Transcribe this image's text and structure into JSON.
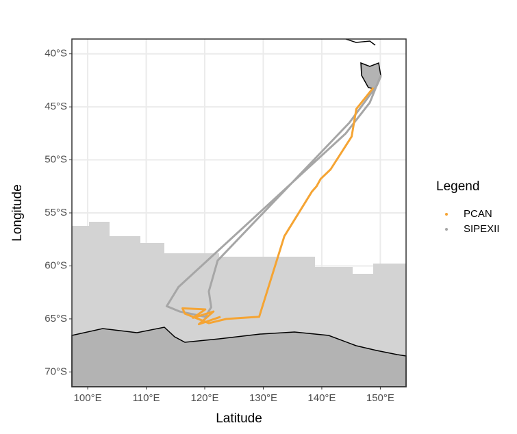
{
  "chart_data": {
    "type": "line",
    "x_label": "Latitude",
    "y_label": "Longitude",
    "xlim": [
      97.3,
      154.4
    ],
    "ylim": [
      -71.4,
      -38.6
    ],
    "xticks": [
      {
        "value": 100,
        "label": "100°E"
      },
      {
        "value": 110,
        "label": "110°E"
      },
      {
        "value": 120,
        "label": "120°E"
      },
      {
        "value": 130,
        "label": "130°E"
      },
      {
        "value": 140,
        "label": "140°E"
      },
      {
        "value": 150,
        "label": "150°E"
      }
    ],
    "yticks": [
      {
        "value": -40,
        "label": "40°S"
      },
      {
        "value": -45,
        "label": "45°S"
      },
      {
        "value": -50,
        "label": "50°S"
      },
      {
        "value": -55,
        "label": "55°S"
      },
      {
        "value": -60,
        "label": "60°S"
      },
      {
        "value": -65,
        "label": "65°S"
      },
      {
        "value": -70,
        "label": "70°S"
      }
    ],
    "grid": true,
    "legend_title": "Legend",
    "series": [
      {
        "name": "PCAN",
        "color": "#f5a433",
        "x": [
          148.8,
          145.9,
          145.1,
          141.5,
          139.8,
          139.1,
          138.3,
          133.6,
          129.3,
          123.7,
          120.7,
          116.6,
          116.2,
          120.1,
          118.0,
          121.5,
          119.0,
          122.7
        ],
        "values": [
          -43.2,
          -45.2,
          -47.8,
          -50.9,
          -51.8,
          -52.5,
          -53.0,
          -57.2,
          -64.8,
          -65.0,
          -65.4,
          -64.5,
          -64.0,
          -64.1,
          -64.9,
          -64.3,
          -65.5,
          -64.8
        ]
      },
      {
        "name": "SIPEXII",
        "color": "#a6a6a6",
        "x": [
          150.1,
          148.2,
          144.1,
          115.5,
          113.5,
          115.7,
          120.1,
          121.1,
          120.7,
          122.2,
          144.7,
          149.4,
          150.1
        ],
        "values": [
          -42.0,
          -44.6,
          -47.5,
          -62.0,
          -63.8,
          -64.3,
          -64.8,
          -63.9,
          -62.4,
          -59.5,
          -46.5,
          -43.0,
          -42.1
        ]
      }
    ]
  }
}
